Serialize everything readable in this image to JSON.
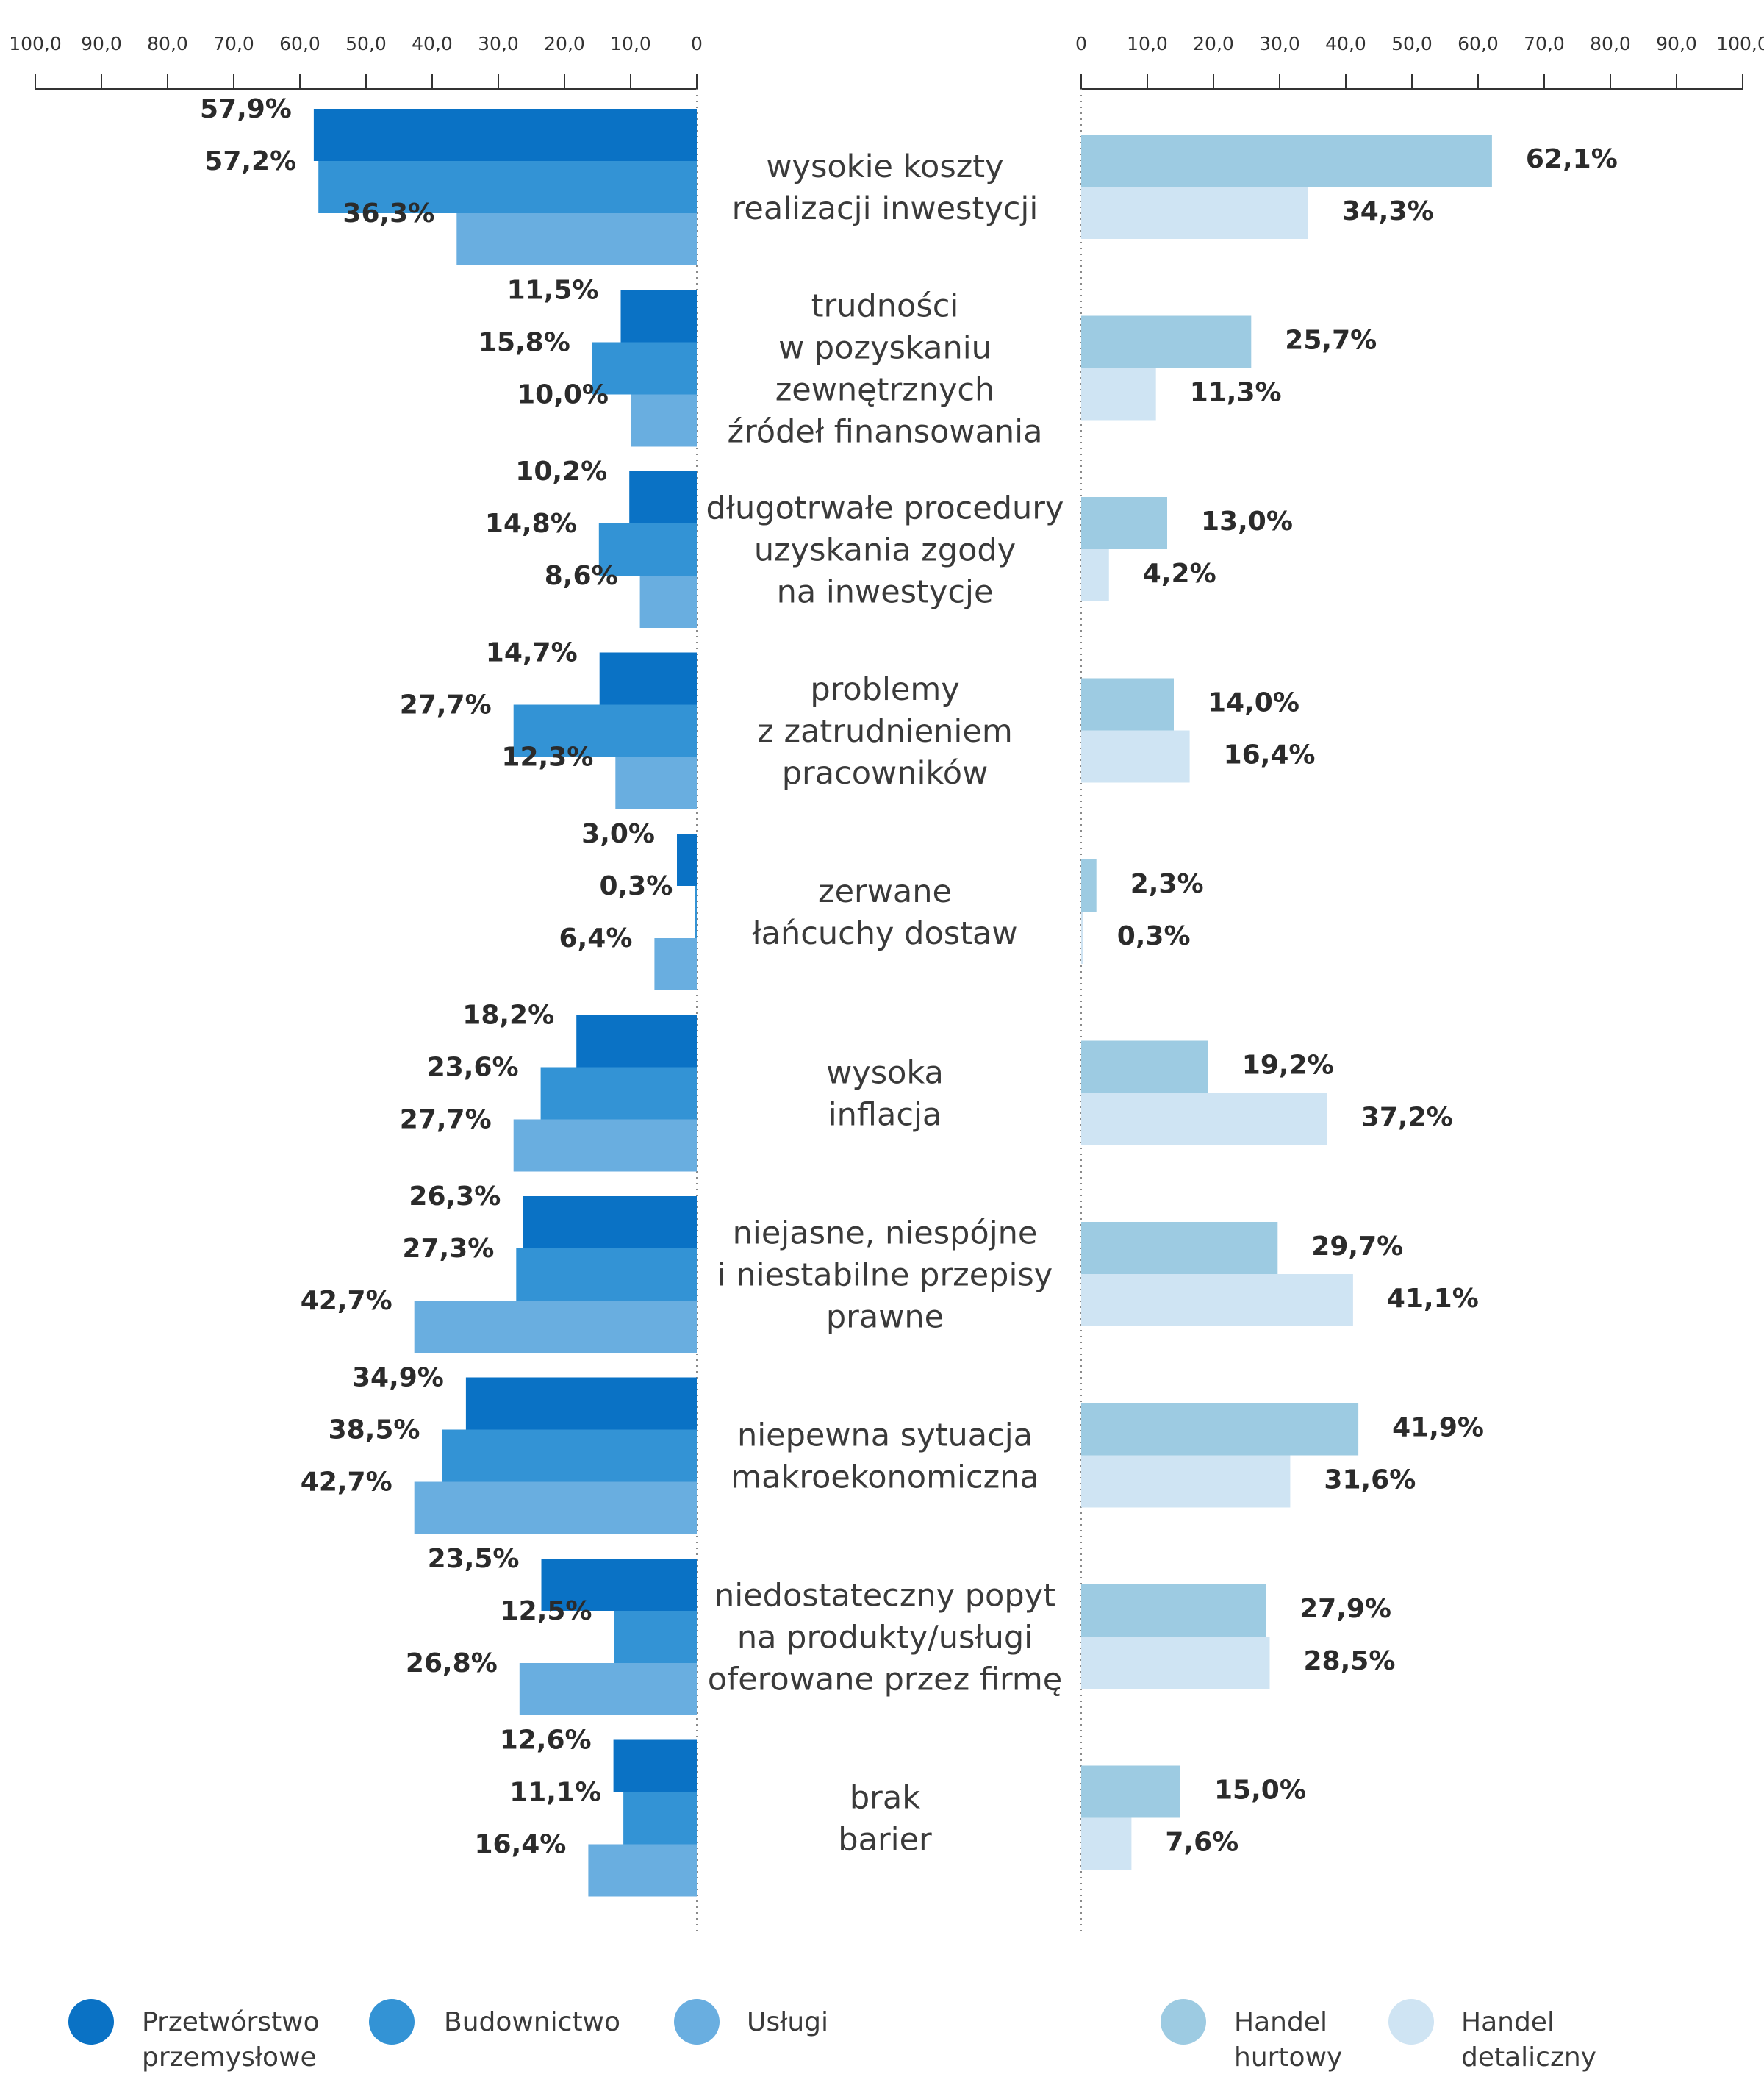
{
  "chart_data": {
    "type": "bar",
    "orientation": "horizontal",
    "layout": "back-to-back",
    "xlim": [
      0,
      100
    ],
    "grid": false,
    "legend_position": "bottom",
    "left_axis": {
      "ticks": [
        "100,0",
        "90,0",
        "80,0",
        "70,0",
        "60,0",
        "50,0",
        "40,0",
        "30,0",
        "20,0",
        "10,0",
        "0"
      ],
      "direction": "reversed"
    },
    "right_axis": {
      "ticks": [
        "0",
        "10,0",
        "20,0",
        "30,0",
        "40,0",
        "50,0",
        "60,0",
        "70,0",
        "80,0",
        "90,0",
        "100,0"
      ],
      "direction": "normal"
    },
    "categories": [
      [
        "wysokie koszty",
        "realizacji inwestycji"
      ],
      [
        "trudności",
        "w pozyskaniu",
        "zewnętrznych",
        "źródeł finansowania"
      ],
      [
        "długotrwałe procedury",
        "uzyskania zgody",
        "na inwestycje"
      ],
      [
        "problemy",
        "z zatrudnieniem",
        "pracowników"
      ],
      [
        "zerwane",
        "łańcuchy dostaw"
      ],
      [
        "wysoka",
        "inflacja"
      ],
      [
        "niejasne, niespójne",
        "i niestabilne przepisy",
        "prawne"
      ],
      [
        "niepewna sytuacja",
        "makroekonomiczna"
      ],
      [
        "niedostateczny popyt",
        "na produkty/usługi",
        "oferowane przez firmę"
      ],
      [
        "brak",
        "barier"
      ]
    ],
    "series": [
      {
        "name": [
          "Przetwórstwo",
          "przemysłowe"
        ],
        "side": "left",
        "color": "#0a72c5",
        "values": [
          57.9,
          11.5,
          10.2,
          14.7,
          3.0,
          18.2,
          26.3,
          34.9,
          23.5,
          12.6
        ],
        "labels": [
          "57,9%",
          "11,5%",
          "10,2%",
          "14,7%",
          "3,0%",
          "18,2%",
          "26,3%",
          "34,9%",
          "23,5%",
          "12,6%"
        ]
      },
      {
        "name": [
          "Budownictwo"
        ],
        "side": "left",
        "color": "#3393d5",
        "values": [
          57.2,
          15.8,
          14.8,
          27.7,
          0.3,
          23.6,
          27.3,
          38.5,
          12.5,
          11.1
        ],
        "labels": [
          "57,2%",
          "15,8%",
          "14,8%",
          "27,7%",
          "0,3%",
          "23,6%",
          "27,3%",
          "38,5%",
          "12,5%",
          "11,1%"
        ]
      },
      {
        "name": [
          "Usługi"
        ],
        "side": "left",
        "color": "#69aee0",
        "values": [
          36.3,
          10.0,
          8.6,
          12.3,
          6.4,
          27.7,
          42.7,
          42.7,
          26.8,
          16.4
        ],
        "labels": [
          "36,3%",
          "10,0%",
          "8,6%",
          "12,3%",
          "6,4%",
          "27,7%",
          "42,7%",
          "42,7%",
          "26,8%",
          "16,4%"
        ]
      },
      {
        "name": [
          "Handel",
          "hurtowy"
        ],
        "side": "right",
        "color": "#9dcbe2",
        "values": [
          62.1,
          25.7,
          13.0,
          14.0,
          2.3,
          19.2,
          29.7,
          41.9,
          27.9,
          15.0
        ],
        "labels": [
          "62,1%",
          "25,7%",
          "13,0%",
          "14,0%",
          "2,3%",
          "19,2%",
          "29,7%",
          "41,9%",
          "27,9%",
          "15,0%"
        ]
      },
      {
        "name": [
          "Handel",
          "detaliczny"
        ],
        "side": "right",
        "color": "#cfe4f3",
        "values": [
          34.3,
          11.3,
          4.2,
          16.4,
          0.3,
          37.2,
          41.1,
          31.6,
          28.5,
          7.6
        ],
        "labels": [
          "34,3%",
          "11,3%",
          "4,2%",
          "16,4%",
          "0,3%",
          "37,2%",
          "41,1%",
          "31,6%",
          "28,5%",
          "7,6%"
        ]
      }
    ]
  }
}
